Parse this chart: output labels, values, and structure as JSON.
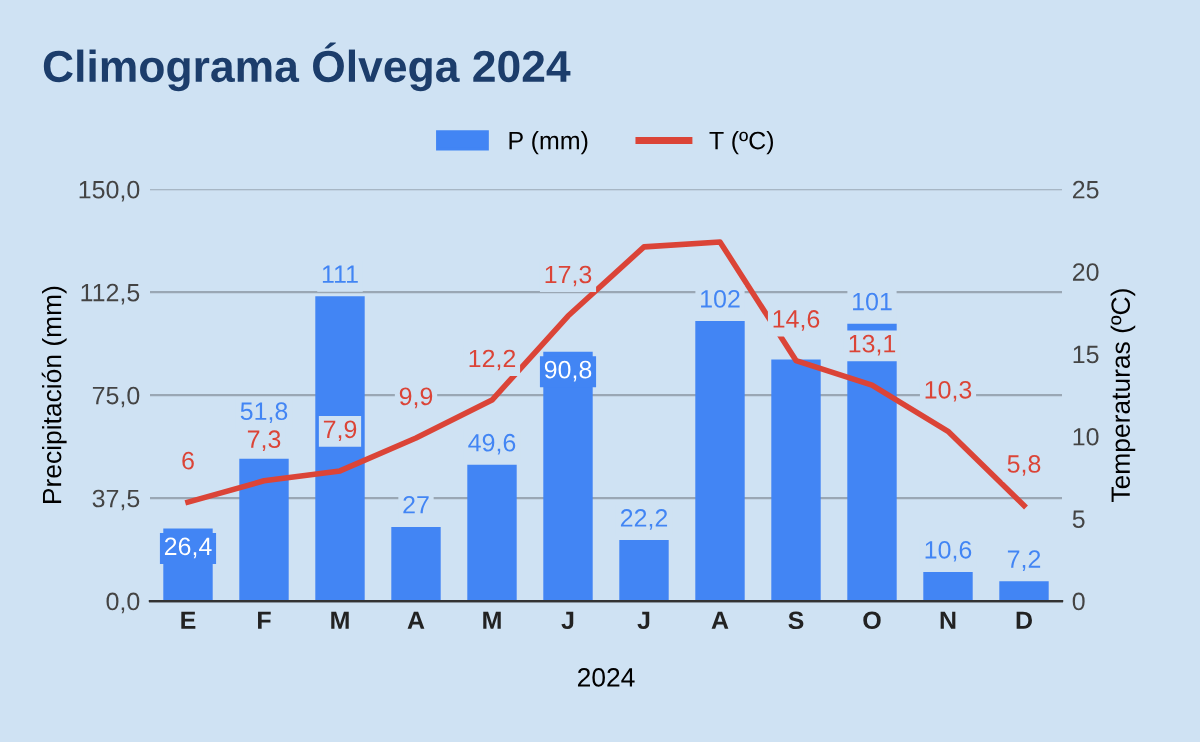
{
  "chart_data": {
    "type": "bar",
    "title": "Climograma Ólvega 2024",
    "xlabel": "2024",
    "ylabel": "Precipitación (mm)",
    "y2label": "Temperaturas (ºC)",
    "categories": [
      "E",
      "F",
      "M",
      "A",
      "M",
      "J",
      "J",
      "A",
      "S",
      "O",
      "N",
      "D"
    ],
    "series": [
      {
        "name": "P (mm)",
        "color": "#4285f4",
        "values": [
          26.4,
          51.8,
          111,
          27,
          49.6,
          90.8,
          22.2,
          102,
          88,
          101,
          10.6,
          7.2
        ],
        "value_labels": [
          "26,4",
          "51,8",
          "111",
          "27",
          "49,6",
          "90,8",
          "22,2",
          "102",
          null,
          "101",
          "10,6",
          "7,2"
        ]
      },
      {
        "name": "T (ºC)",
        "type": "line",
        "axis": "y2",
        "color": "#db4437",
        "values": [
          6,
          7.3,
          7.9,
          9.9,
          12.2,
          17.3,
          21.5,
          21.8,
          14.6,
          13.1,
          10.3,
          5.8
        ],
        "value_labels": [
          "6",
          "7,3",
          "7,9",
          "9,9",
          "12,2",
          "17,3",
          null,
          null,
          "14,6",
          "13,1",
          "10,3",
          "5,8"
        ]
      }
    ],
    "ylim": [
      0,
      150
    ],
    "yticks": [
      {
        "value": 0,
        "label": "0,0"
      },
      {
        "value": 37.5,
        "label": "37,5"
      },
      {
        "value": 75,
        "label": "75,0"
      },
      {
        "value": 112.5,
        "label": "112,5"
      },
      {
        "value": 150,
        "label": "150,0"
      }
    ],
    "y2lim": [
      0,
      25
    ],
    "y2ticks": [
      0,
      5,
      10,
      15,
      20,
      25
    ],
    "grid": "y",
    "legend": "top",
    "marker": "none",
    "line_style": "solid"
  }
}
